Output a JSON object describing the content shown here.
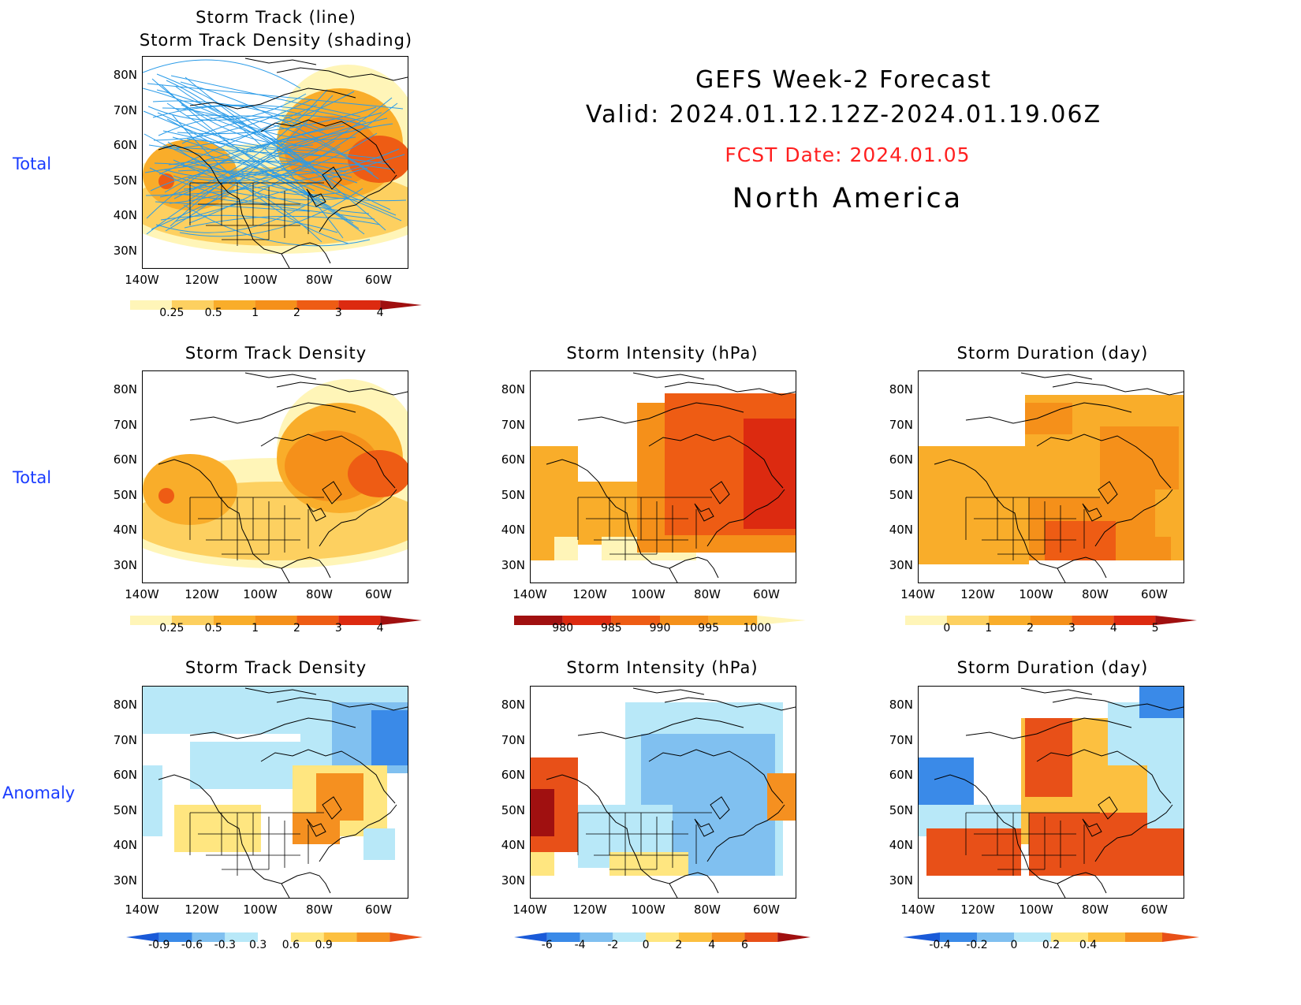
{
  "header": {
    "title": "GEFS Week-2 Forecast",
    "valid": "Valid: 2024.01.12.12Z-2024.01.19.06Z",
    "fcst_date": "FCST Date: 2024.01.05",
    "region": "North America",
    "fcst_color": "#ff2020"
  },
  "row_labels": [
    "Total",
    "Total",
    "Anomaly"
  ],
  "lat_labels": [
    "80N",
    "70N",
    "60N",
    "50N",
    "40N",
    "30N"
  ],
  "lon_labels": [
    "140W",
    "120W",
    "100W",
    "80W",
    "60W"
  ],
  "panels": {
    "top": {
      "title_line1": "Storm Track (line)",
      "title_line2": "Storm Track Density (shading)"
    },
    "r2c1": {
      "title": "Storm Track Density"
    },
    "r2c2": {
      "title": "Storm Intensity (hPa)"
    },
    "r2c3": {
      "title": "Storm Duration (day)"
    },
    "r3c1": {
      "title": "Storm Track Density"
    },
    "r3c2": {
      "title": "Storm Intensity (hPa)"
    },
    "r3c3": {
      "title": "Storm Duration (day)"
    }
  },
  "colorbars": {
    "density_total": {
      "labels": [
        "0.25",
        "0.5",
        "1",
        "2",
        "3",
        "4"
      ],
      "colors": [
        "#fff5b8",
        "#fdd060",
        "#f9ad2a",
        "#f5901a",
        "#ee5c14",
        "#dc2a10",
        "#a01010"
      ]
    },
    "intensity_total": {
      "labels": [
        "980",
        "985",
        "990",
        "995",
        "1000"
      ],
      "colors": [
        "#a01010",
        "#dc2a10",
        "#ee5c14",
        "#f5901a",
        "#f9ad2a",
        "#fff5b8"
      ]
    },
    "duration_total": {
      "labels": [
        "0",
        "1",
        "2",
        "3",
        "4",
        "5"
      ],
      "colors": [
        "#fff5b8",
        "#fdd060",
        "#f9ad2a",
        "#f5901a",
        "#ee5c14",
        "#dc2a10",
        "#a01010"
      ]
    },
    "density_anom": {
      "labels": [
        "-0.9",
        "-0.6",
        "-0.3",
        "0.3",
        "0.6",
        "0.9"
      ],
      "colors": [
        "#1a5ad8",
        "#3a8ae8",
        "#80c0f0",
        "#b8e8f8",
        "#ffffff",
        "#ffe680",
        "#fcc040",
        "#f59020",
        "#e85018"
      ]
    },
    "intensity_anom": {
      "labels": [
        "-6",
        "-4",
        "-2",
        "0",
        "2",
        "4",
        "6"
      ],
      "colors": [
        "#1a5ad8",
        "#3a8ae8",
        "#80c0f0",
        "#b8e8f8",
        "#ffe680",
        "#fcc040",
        "#f59020",
        "#e85018",
        "#a01010"
      ]
    },
    "duration_anom": {
      "labels": [
        "-0.4",
        "-0.2",
        "0",
        "0.2",
        "0.4"
      ],
      "colors": [
        "#1a5ad8",
        "#3a8ae8",
        "#80c0f0",
        "#b8e8f8",
        "#ffe680",
        "#fcc040",
        "#f59020",
        "#e85018"
      ]
    }
  },
  "map_style": {
    "track_color": "#2a9be8",
    "coast_color": "#000000"
  }
}
